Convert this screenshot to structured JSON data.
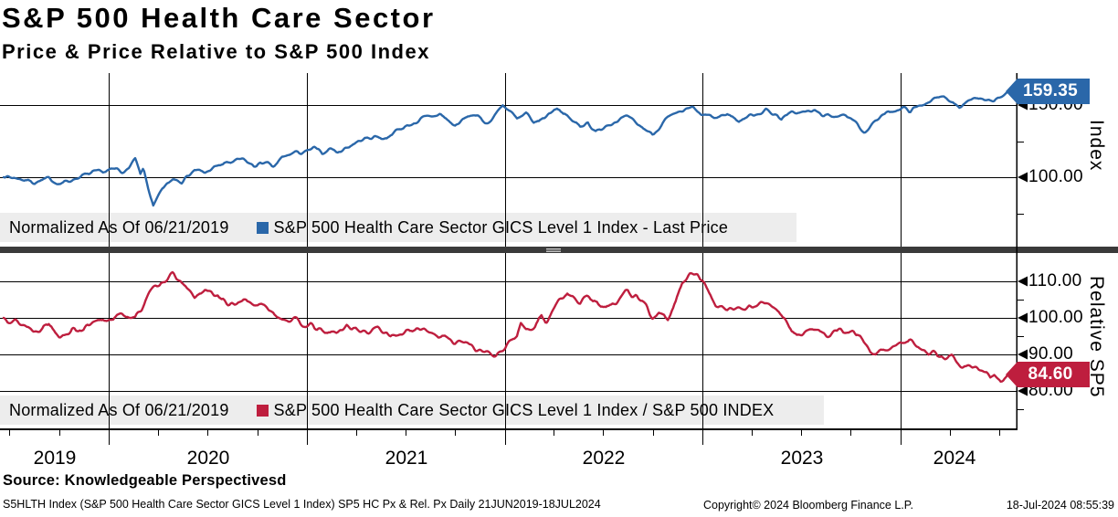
{
  "title": "S&P 500 Health Care Sector",
  "subtitle": "Price & Price Relative to S&P 500 Index",
  "colors": {
    "blue_line": "#2A67A9",
    "blue_badge": "#2A67A9",
    "red_line": "#BE1E3E",
    "red_badge": "#BE1E3E",
    "grid": "#000000",
    "legend_bg": "#EDEDED",
    "separator": "#3A3A3A",
    "separator_handle": "#CFCFCF"
  },
  "top_panel": {
    "legend_prefix": "Normalized As Of 06/21/2019",
    "legend_label": "S&P 500 Health Care Sector GICS Level 1 Index - Last Price",
    "axis_title": "Index",
    "last_price": "159.35",
    "yticks": [
      {
        "value": 150,
        "label": "150.00"
      },
      {
        "value": 100,
        "label": "100.00"
      }
    ]
  },
  "bottom_panel": {
    "legend_prefix": "Normalized As Of 06/21/2019",
    "legend_label": "S&P 500 Health Care Sector GICS Level 1 Index / S&P 500 INDEX",
    "axis_title": "Relative SP5",
    "last_price": "84.60",
    "yticks": [
      {
        "value": 110,
        "label": "110.00"
      },
      {
        "value": 100,
        "label": "100.00"
      },
      {
        "value": 90,
        "label": "90.00"
      },
      {
        "value": 80,
        "label": "80.00"
      }
    ]
  },
  "x_axis": {
    "years": [
      "2019",
      "2020",
      "2021",
      "2022",
      "2023",
      "2024"
    ],
    "range_start": "21JUN2019",
    "range_end": "18JUL2024"
  },
  "footer": {
    "source": "Source: Knowledgeable Perspectivesd",
    "ticker_line": "S5HLTH Index (S&P 500 Health Care Sector GICS Level 1 Index) SP5 HC Px & Rel. Px  Daily 21JUN2019-18JUL2024",
    "copyright": "Copyright© 2024 Bloomberg Finance L.P.",
    "datetime": "18-Jul-2024 08:55:39"
  },
  "chart_data": [
    {
      "type": "line",
      "panel": "top",
      "name": "S&P 500 Health Care Sector GICS Level 1 Index - Last Price",
      "normalized_as_of": "06/21/2019",
      "color": "#2A67A9",
      "last_value": 159.35,
      "ylim": [
        52,
        172
      ],
      "ytick_values": [
        100,
        150
      ],
      "x_unit": "fraction of 21JUN2019-18JUL2024",
      "points": [
        [
          0,
          100
        ],
        [
          0.013,
          99.3
        ],
        [
          0.03,
          96.4
        ],
        [
          0.045,
          99.0
        ],
        [
          0.056,
          95.9
        ],
        [
          0.068,
          98.3
        ],
        [
          0.079,
          101.2
        ],
        [
          0.094,
          103.2
        ],
        [
          0.105,
          104.2
        ],
        [
          0.113,
          105.3
        ],
        [
          0.121,
          103.6
        ],
        [
          0.131,
          112.4
        ],
        [
          0.136,
          101.5
        ],
        [
          0.139,
          106.2
        ],
        [
          0.149,
          79.4
        ],
        [
          0.158,
          92.0
        ],
        [
          0.169,
          99.6
        ],
        [
          0.177,
          97.2
        ],
        [
          0.19,
          104.8
        ],
        [
          0.2,
          102.6
        ],
        [
          0.213,
          108.0
        ],
        [
          0.225,
          110.3
        ],
        [
          0.237,
          112.8
        ],
        [
          0.249,
          107.8
        ],
        [
          0.259,
          110.5
        ],
        [
          0.268,
          106.3
        ],
        [
          0.277,
          113.2
        ],
        [
          0.29,
          116.8
        ],
        [
          0.302,
          117.5
        ],
        [
          0.309,
          120.2
        ],
        [
          0.317,
          116.8
        ],
        [
          0.325,
          120.6
        ],
        [
          0.332,
          117.2
        ],
        [
          0.341,
          120.8
        ],
        [
          0.359,
          126.4
        ],
        [
          0.373,
          128.2
        ],
        [
          0.377,
          125.8
        ],
        [
          0.389,
          131.3
        ],
        [
          0.404,
          136.6
        ],
        [
          0.419,
          141.2
        ],
        [
          0.434,
          143.8
        ],
        [
          0.449,
          135.4
        ],
        [
          0.461,
          141.0
        ],
        [
          0.468,
          143.4
        ],
        [
          0.482,
          137.0
        ],
        [
          0.497,
          150.8
        ],
        [
          0.511,
          140.3
        ],
        [
          0.52,
          143.8
        ],
        [
          0.528,
          137.6
        ],
        [
          0.535,
          139.8
        ],
        [
          0.551,
          148.2
        ],
        [
          0.561,
          141.6
        ],
        [
          0.574,
          134.8
        ],
        [
          0.581,
          139.2
        ],
        [
          0.589,
          130.8
        ],
        [
          0.6,
          136.8
        ],
        [
          0.621,
          141.6
        ],
        [
          0.633,
          135.2
        ],
        [
          0.646,
          129.6
        ],
        [
          0.661,
          140.8
        ],
        [
          0.675,
          145.8
        ],
        [
          0.686,
          148.4
        ],
        [
          0.694,
          143.4
        ],
        [
          0.709,
          141.2
        ],
        [
          0.72,
          143.6
        ],
        [
          0.732,
          138.8
        ],
        [
          0.74,
          141.6
        ],
        [
          0.759,
          146.6
        ],
        [
          0.774,
          141.4
        ],
        [
          0.785,
          144.8
        ],
        [
          0.807,
          145.6
        ],
        [
          0.819,
          141.8
        ],
        [
          0.834,
          143.2
        ],
        [
          0.846,
          138.6
        ],
        [
          0.857,
          131.8
        ],
        [
          0.868,
          139.4
        ],
        [
          0.883,
          146.2
        ],
        [
          0.895,
          147.6
        ],
        [
          0.902,
          145.8
        ],
        [
          0.921,
          152.4
        ],
        [
          0.936,
          156.2
        ],
        [
          0.951,
          149.8
        ],
        [
          0.965,
          155.2
        ],
        [
          0.982,
          151.8
        ],
        [
          0.989,
          153.6
        ],
        [
          0.996,
          157.2
        ],
        [
          1,
          159.35
        ]
      ]
    },
    {
      "type": "line",
      "panel": "bottom",
      "name": "S&P 500 Health Care Sector GICS Level 1 Index / S&P 500 INDEX",
      "normalized_as_of": "06/21/2019",
      "color": "#BE1E3E",
      "last_value": 84.6,
      "ylim": [
        69.5,
        117.75
      ],
      "ytick_values": [
        80,
        90,
        100,
        110
      ],
      "x_unit": "fraction of 21JUN2019-18JUL2024",
      "points": [
        [
          0,
          100
        ],
        [
          0.01,
          99.2
        ],
        [
          0.024,
          97.4
        ],
        [
          0.03,
          96.3
        ],
        [
          0.045,
          98.6
        ],
        [
          0.056,
          95.4
        ],
        [
          0.068,
          96.6
        ],
        [
          0.079,
          97.2
        ],
        [
          0.094,
          98.6
        ],
        [
          0.105,
          99.6
        ],
        [
          0.121,
          100.9
        ],
        [
          0.131,
          99.9
        ],
        [
          0.139,
          103.5
        ],
        [
          0.149,
          108.6
        ],
        [
          0.158,
          110.2
        ],
        [
          0.169,
          111.8
        ],
        [
          0.177,
          109.6
        ],
        [
          0.19,
          105.4
        ],
        [
          0.2,
          107.1
        ],
        [
          0.213,
          106.2
        ],
        [
          0.225,
          103.1
        ],
        [
          0.237,
          105.2
        ],
        [
          0.249,
          104.0
        ],
        [
          0.259,
          103.2
        ],
        [
          0.268,
          101.5
        ],
        [
          0.277,
          99.9
        ],
        [
          0.29,
          98.9
        ],
        [
          0.302,
          98.1
        ],
        [
          0.317,
          96.3
        ],
        [
          0.332,
          96.0
        ],
        [
          0.341,
          98.1
        ],
        [
          0.359,
          95.9
        ],
        [
          0.373,
          97.1
        ],
        [
          0.389,
          94.9
        ],
        [
          0.404,
          96.3
        ],
        [
          0.419,
          97.3
        ],
        [
          0.434,
          95.1
        ],
        [
          0.449,
          93.6
        ],
        [
          0.461,
          93.0
        ],
        [
          0.468,
          91.9
        ],
        [
          0.482,
          90.1
        ],
        [
          0.49,
          89.6
        ],
        [
          0.497,
          91.1
        ],
        [
          0.511,
          95.4
        ],
        [
          0.515,
          98.9
        ],
        [
          0.52,
          96.6
        ],
        [
          0.528,
          97.4
        ],
        [
          0.535,
          100.6
        ],
        [
          0.54,
          99.1
        ],
        [
          0.551,
          104.1
        ],
        [
          0.561,
          106.3
        ],
        [
          0.574,
          104.1
        ],
        [
          0.581,
          105.9
        ],
        [
          0.589,
          104.4
        ],
        [
          0.6,
          103.3
        ],
        [
          0.61,
          104.9
        ],
        [
          0.621,
          107.4
        ],
        [
          0.633,
          105.3
        ],
        [
          0.64,
          103.3
        ],
        [
          0.646,
          99.4
        ],
        [
          0.652,
          100.9
        ],
        [
          0.661,
          99.9
        ],
        [
          0.666,
          102.4
        ],
        [
          0.675,
          109.4
        ],
        [
          0.686,
          112.1
        ],
        [
          0.691,
          112.6
        ],
        [
          0.694,
          110.9
        ],
        [
          0.7,
          108.4
        ],
        [
          0.709,
          103.4
        ],
        [
          0.72,
          101.9
        ],
        [
          0.732,
          103.4
        ],
        [
          0.74,
          102.1
        ],
        [
          0.747,
          103.6
        ],
        [
          0.759,
          104.3
        ],
        [
          0.774,
          100.9
        ],
        [
          0.78,
          98.4
        ],
        [
          0.785,
          96.1
        ],
        [
          0.79,
          95.4
        ],
        [
          0.807,
          96.9
        ],
        [
          0.819,
          94.9
        ],
        [
          0.834,
          96.4
        ],
        [
          0.84,
          95.7
        ],
        [
          0.846,
          96.6
        ],
        [
          0.857,
          92.9
        ],
        [
          0.862,
          90.4
        ],
        [
          0.868,
          89.9
        ],
        [
          0.876,
          91.9
        ],
        [
          0.883,
          91.4
        ],
        [
          0.895,
          93.4
        ],
        [
          0.902,
          93.9
        ],
        [
          0.91,
          92.4
        ],
        [
          0.921,
          89.9
        ],
        [
          0.928,
          90.6
        ],
        [
          0.936,
          88.9
        ],
        [
          0.944,
          89.4
        ],
        [
          0.951,
          87.4
        ],
        [
          0.958,
          86.1
        ],
        [
          0.965,
          86.9
        ],
        [
          0.972,
          85.4
        ],
        [
          0.979,
          84.9
        ],
        [
          0.982,
          83.9
        ],
        [
          0.986,
          84.4
        ],
        [
          0.989,
          83.1
        ],
        [
          0.993,
          82.4
        ],
        [
          0.996,
          83.4
        ],
        [
          1,
          84.6
        ]
      ]
    }
  ]
}
